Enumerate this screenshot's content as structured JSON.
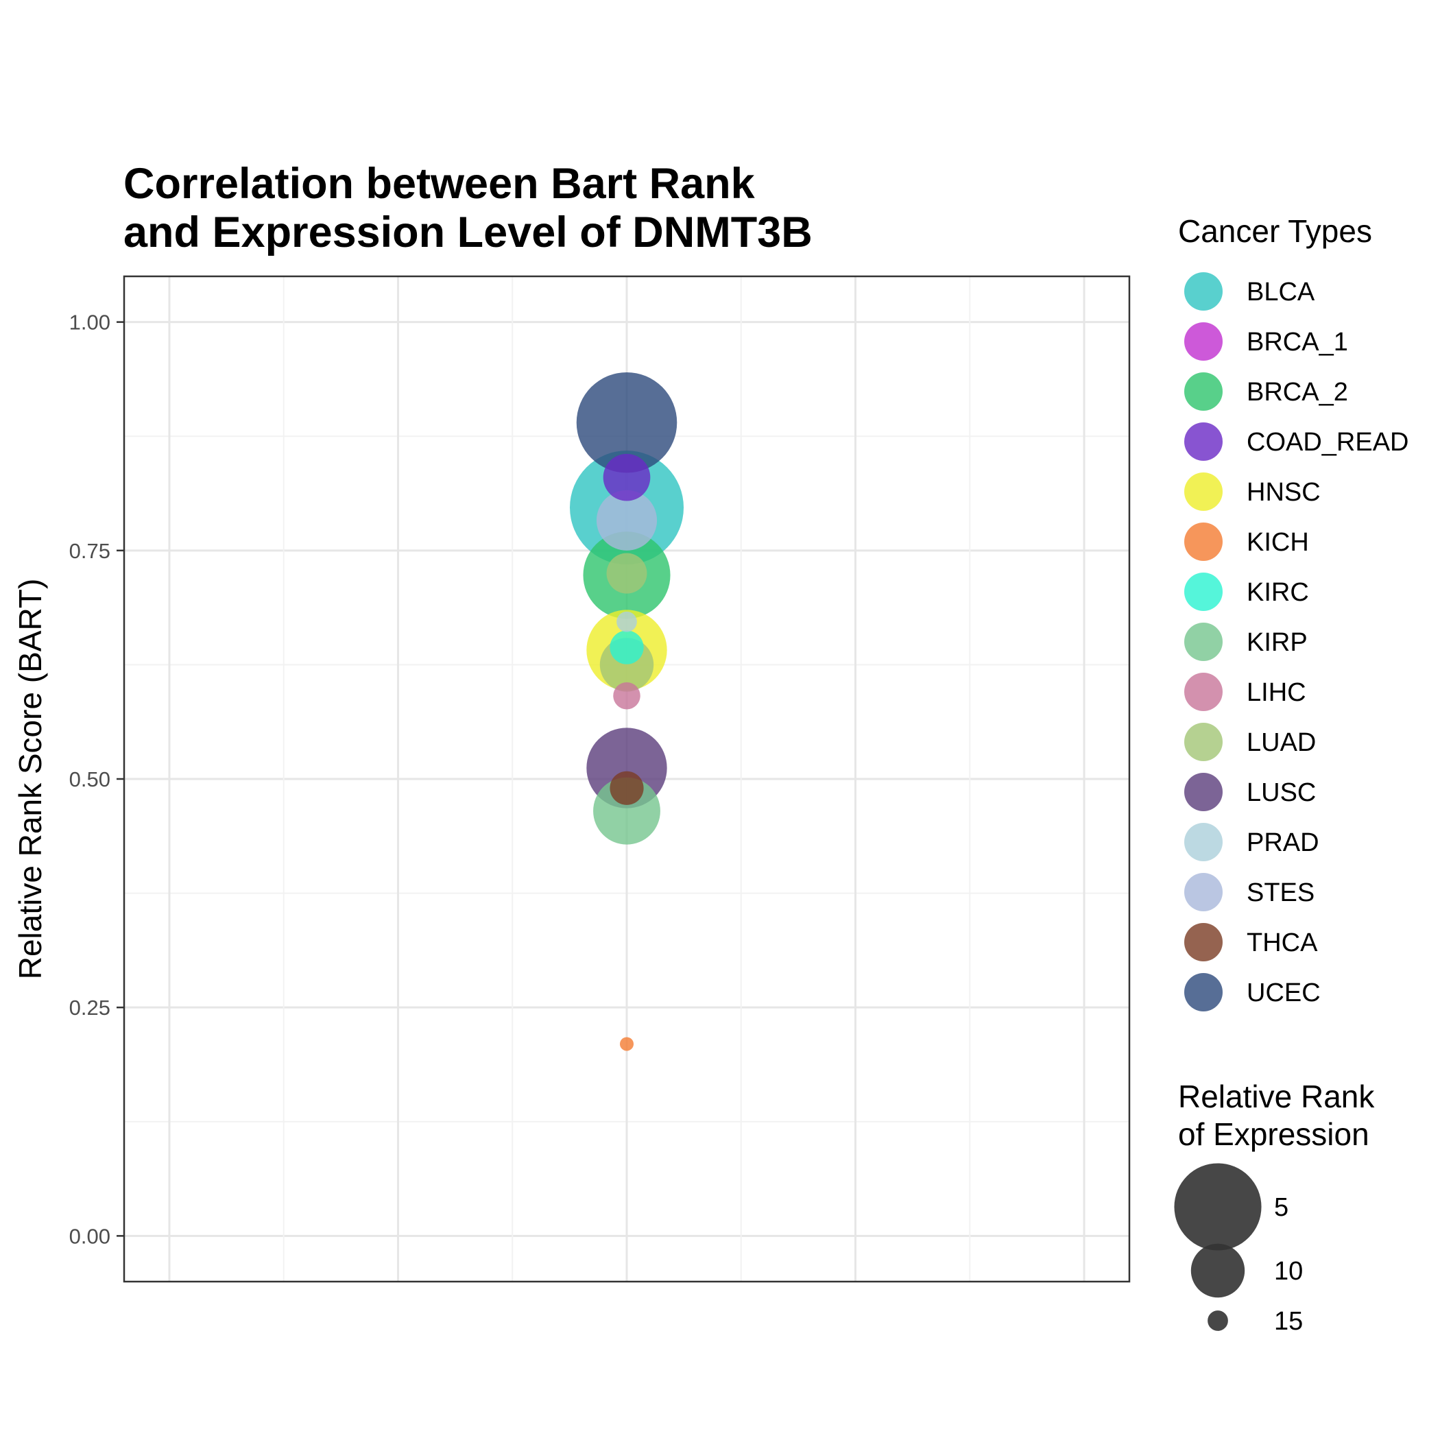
{
  "chart_data": {
    "type": "scatter",
    "title_lines": [
      "Correlation between Bart Rank",
      "and Expression Level of DNMT3B"
    ],
    "xlabel": "",
    "ylabel": "Relative Rank Score (BART)",
    "ylim": [
      -0.05,
      1.05
    ],
    "yticks": [
      {
        "value": 0.0,
        "label": "0.00"
      },
      {
        "value": 0.25,
        "label": "0.25"
      },
      {
        "value": 0.5,
        "label": "0.50"
      },
      {
        "value": 0.75,
        "label": "0.75"
      },
      {
        "value": 1.0,
        "label": "1.00"
      }
    ],
    "grid": true,
    "legend_position": "right",
    "color_legend": {
      "title": "Cancer Types",
      "items": [
        {
          "name": "BLCA",
          "color": "#2fc4c2"
        },
        {
          "name": "BRCA_1",
          "color": "#c12fcf"
        },
        {
          "name": "BRCA_2",
          "color": "#2ec46d"
        },
        {
          "name": "COAD_READ",
          "color": "#6a29c6"
        },
        {
          "name": "HNSC",
          "color": "#eeee2a"
        },
        {
          "name": "KICH",
          "color": "#f47c32"
        },
        {
          "name": "KIRC",
          "color": "#2af3d1"
        },
        {
          "name": "KIRP",
          "color": "#76c68e"
        },
        {
          "name": "LIHC",
          "color": "#c8769a"
        },
        {
          "name": "LUAD",
          "color": "#a2c676"
        },
        {
          "name": "LUSC",
          "color": "#5b3d7c"
        },
        {
          "name": "PRAD",
          "color": "#abd0db"
        },
        {
          "name": "STES",
          "color": "#a9b8db"
        },
        {
          "name": "THCA",
          "color": "#7a3c24"
        },
        {
          "name": "UCEC",
          "color": "#2d4a7c"
        }
      ]
    },
    "size_legend": {
      "title_lines": [
        "Relative Rank",
        "of Expression"
      ],
      "items": [
        {
          "label": "5",
          "value": 5
        },
        {
          "label": "10",
          "value": 10
        },
        {
          "label": "15",
          "value": 15
        }
      ]
    },
    "points": [
      {
        "series": "BLCA",
        "y": 0.797,
        "expression_rank": 1
      },
      {
        "series": "UCEC",
        "y": 0.89,
        "expression_rank": 3
      },
      {
        "series": "BRCA_2",
        "y": 0.723,
        "expression_rank": 5
      },
      {
        "series": "LUSC",
        "y": 0.512,
        "expression_rank": 6
      },
      {
        "series": "HNSC",
        "y": 0.641,
        "expression_rank": 6
      },
      {
        "series": "KIRP",
        "y": 0.465,
        "expression_rank": 8
      },
      {
        "series": "STES",
        "y": 0.783,
        "expression_rank": 9
      },
      {
        "series": "LUAD",
        "y": 0.625,
        "expression_rank": 10
      },
      {
        "series": "COAD_READ",
        "y": 0.83,
        "expression_rank": 11
      },
      {
        "series": "LUAD",
        "y": 0.725,
        "expression_rank": 12
      },
      {
        "series": "KIRC",
        "y": 0.644,
        "expression_rank": 13
      },
      {
        "series": "THCA",
        "y": 0.49,
        "expression_rank": 13
      },
      {
        "series": "LIHC",
        "y": 0.591,
        "expression_rank": 14
      },
      {
        "series": "PRAD",
        "y": 0.672,
        "expression_rank": 15
      },
      {
        "series": "KICH",
        "y": 0.21,
        "expression_rank": 16
      }
    ]
  }
}
